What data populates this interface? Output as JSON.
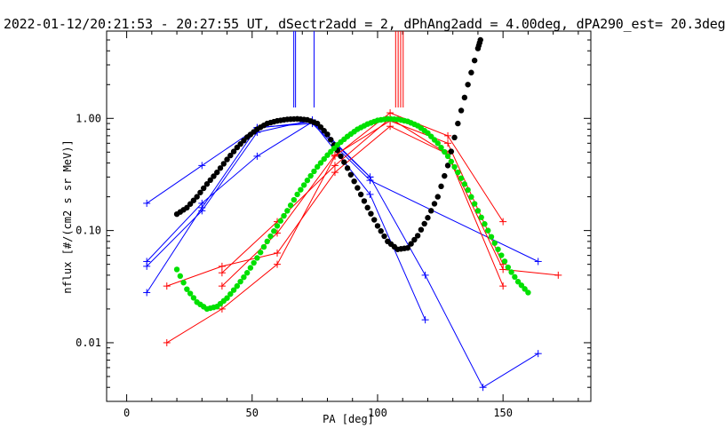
{
  "chart_data": {
    "type": "scatter",
    "title": "2022-01-12/20:21:53 - 20:27:55 UT, dSectr2add = 2, dPhAng2add = 4.00deg, dPA290_est=  20.3deg",
    "xlabel": "PA [deg]",
    "ylabel": "nflux [#/(cm2 s sr MeV)]",
    "xlim": [
      -8,
      185
    ],
    "ylim": [
      0.003,
      6
    ],
    "yscale": "log",
    "grid": false,
    "x_ticks": [
      0,
      50,
      100,
      150
    ],
    "x_tick_labels": [
      "0",
      "50",
      "100",
      "150"
    ],
    "y_ticks": [
      0.01,
      0.1,
      1
    ],
    "y_tick_labels": [
      "0.01",
      "0.10",
      "1.00"
    ],
    "series": [
      {
        "color": "#0000ff",
        "marker": "+",
        "line": true,
        "x": [
          8,
          30,
          52,
          74,
          97,
          119,
          142,
          164
        ],
        "y": [
          0.175,
          0.38,
          0.82,
          0.93,
          0.3,
          0.04,
          0.004,
          0.008
        ]
      },
      {
        "color": "#0000ff",
        "marker": "+",
        "line": true,
        "x": [
          8,
          30,
          52,
          74,
          97,
          119
        ],
        "y": [
          0.053,
          0.175,
          0.46,
          0.93,
          0.21,
          0.016
        ]
      },
      {
        "color": "#0000ff",
        "marker": "+",
        "line": true,
        "x": [
          8,
          30,
          52,
          74,
          97
        ],
        "y": [
          0.048,
          0.15,
          0.75,
          0.97,
          0.3
        ]
      },
      {
        "color": "#0000ff",
        "marker": "+",
        "line": true,
        "x": [
          8,
          30,
          52,
          74,
          97,
          164
        ],
        "y": [
          0.028,
          0.16,
          0.83,
          0.9,
          0.28,
          0.053
        ]
      },
      {
        "color": "#ff0000",
        "marker": "+",
        "line": true,
        "x": [
          16,
          38,
          60,
          83,
          105,
          128,
          150,
          172
        ],
        "y": [
          0.032,
          0.048,
          0.063,
          0.33,
          0.85,
          0.48,
          0.045,
          0.04
        ]
      },
      {
        "color": "#ff0000",
        "marker": "+",
        "line": true,
        "x": [
          16,
          38,
          60,
          83,
          105,
          128,
          150
        ],
        "y": [
          0.01,
          0.02,
          0.05,
          0.46,
          1.12,
          0.7,
          0.12
        ]
      },
      {
        "color": "#ff0000",
        "marker": "+",
        "line": true,
        "x": [
          38,
          60,
          83,
          105,
          128,
          150
        ],
        "y": [
          0.032,
          0.095,
          0.47,
          0.95,
          0.6,
          0.05
        ]
      },
      {
        "color": "#ff0000",
        "marker": "+",
        "line": true,
        "x": [
          38,
          60,
          83,
          105,
          128,
          150
        ],
        "y": [
          0.042,
          0.12,
          0.38,
          1.0,
          0.48,
          0.032
        ]
      },
      {
        "color": "#000000",
        "marker": "dot",
        "line": false,
        "x": [
          20,
          24,
          28,
          32,
          36,
          40,
          44,
          48,
          52,
          56,
          60,
          64,
          68,
          72,
          76,
          80,
          84,
          88,
          92,
          96,
          100,
          104,
          108,
          112,
          116,
          120,
          124,
          128,
          132,
          136,
          140,
          141
        ],
        "y": [
          0.14,
          0.16,
          0.2,
          0.26,
          0.33,
          0.43,
          0.55,
          0.68,
          0.8,
          0.9,
          0.95,
          0.98,
          0.99,
          0.97,
          0.9,
          0.72,
          0.52,
          0.36,
          0.24,
          0.16,
          0.11,
          0.08,
          0.068,
          0.07,
          0.09,
          0.13,
          0.2,
          0.38,
          0.9,
          2.0,
          4.2,
          5.0
        ]
      },
      {
        "color": "#00e000",
        "marker": "dot",
        "line": false,
        "x": [
          20,
          24,
          28,
          32,
          36,
          40,
          44,
          48,
          52,
          56,
          60,
          64,
          68,
          72,
          76,
          80,
          84,
          88,
          92,
          96,
          100,
          104,
          108,
          112,
          116,
          120,
          124,
          128,
          132,
          136,
          140,
          144,
          148,
          152,
          156,
          160
        ],
        "y": [
          0.045,
          0.03,
          0.023,
          0.02,
          0.021,
          0.025,
          0.032,
          0.042,
          0.057,
          0.08,
          0.11,
          0.15,
          0.21,
          0.28,
          0.37,
          0.47,
          0.58,
          0.69,
          0.8,
          0.89,
          0.96,
          0.99,
          0.98,
          0.94,
          0.86,
          0.74,
          0.6,
          0.46,
          0.33,
          0.23,
          0.15,
          0.1,
          0.068,
          0.047,
          0.035,
          0.028
        ]
      }
    ],
    "vertical_markers": [
      {
        "color": "#0000ff",
        "x": [
          66.6,
          67.3,
          74.7
        ]
      },
      {
        "color": "#ff0000",
        "x": [
          107.2,
          108.2,
          109.2,
          110.2
        ]
      }
    ]
  }
}
